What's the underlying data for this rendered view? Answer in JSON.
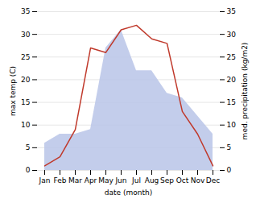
{
  "chart_data": {
    "type": "line",
    "xlabel": "date (month)",
    "ylabel": "max temp (C)",
    "y2label": "med. precipitation (kg/m2)",
    "categories": [
      "Jan",
      "Feb",
      "Mar",
      "Apr",
      "May",
      "Jun",
      "Jul",
      "Aug",
      "Sep",
      "Oct",
      "Nov",
      "Dec"
    ],
    "series": [
      {
        "type": "area",
        "color": "#b8c4e8",
        "axis": "y2",
        "values": [
          6,
          8,
          8,
          9,
          27,
          31,
          22,
          22,
          17,
          16,
          12,
          8
        ]
      },
      {
        "type": "line",
        "color": "#c0392b",
        "values": [
          1,
          3,
          9,
          27,
          26,
          31,
          32,
          29,
          28,
          13,
          8,
          1
        ]
      }
    ],
    "ylim": [
      0,
      35
    ],
    "yticks": [
      0,
      5,
      10,
      15,
      20,
      25,
      30,
      35
    ],
    "y2lim": [
      0,
      35
    ],
    "y2ticks": [
      0,
      5,
      10,
      15,
      20,
      25,
      30,
      35
    ],
    "grid": true
  }
}
